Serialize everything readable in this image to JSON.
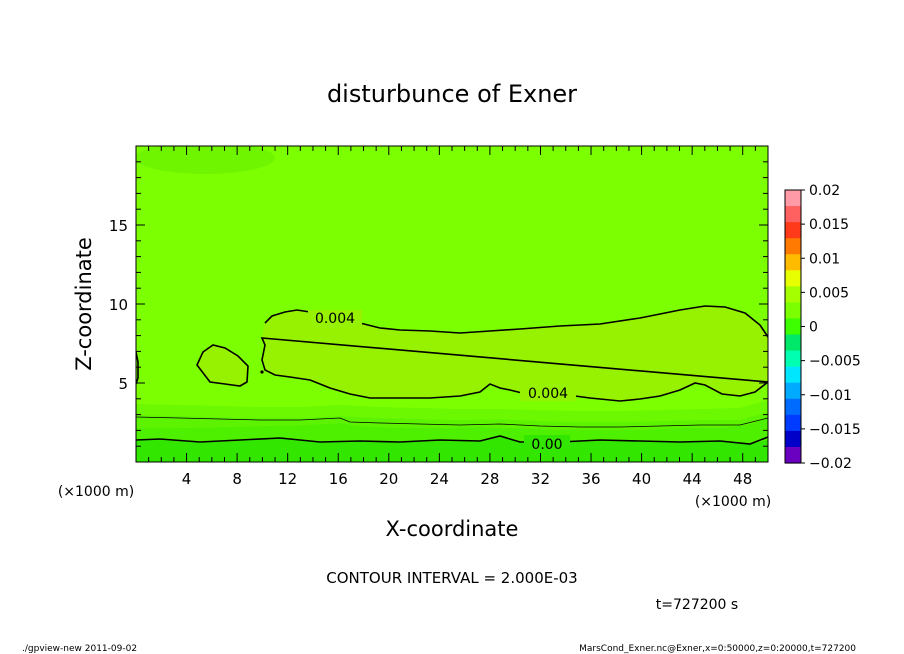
{
  "chart_data": {
    "type": "contour",
    "title": "disturbunce of Exner",
    "xlabel": "X-coordinate",
    "ylabel": "Z-coordinate",
    "x_unit": "(×1000 m)",
    "y_unit": "(×1000 m)",
    "xlim": [
      0,
      50
    ],
    "ylim": [
      0,
      20
    ],
    "x_ticks": [
      4,
      8,
      12,
      16,
      20,
      24,
      28,
      32,
      36,
      40,
      44,
      48
    ],
    "y_ticks": [
      5,
      10,
      15
    ],
    "contour_interval_text": "CONTOUR INTERVAL = 2.000E-03",
    "time_text": "t=727200 s",
    "colorbar": {
      "ticks": [
        "0.02",
        "0.015",
        "0.01",
        "0.005",
        "0",
        "−0.005",
        "−0.01",
        "−0.015",
        "−0.02"
      ],
      "colors": [
        "#ff9aa6",
        "#ff6060",
        "#ff3a1a",
        "#ff7a00",
        "#ffbb00",
        "#e7ff00",
        "#a6ff00",
        "#7cff00",
        "#3dff00",
        "#00e86a",
        "#00ffb0",
        "#00e6ff",
        "#00aaff",
        "#006cff",
        "#003cff",
        "#0000c8",
        "#6a00c0"
      ]
    },
    "contour_labels": [
      {
        "text": "0.004",
        "x": 14.8,
        "z": 9.1
      },
      {
        "text": "0.004",
        "x": 29.5,
        "z": 4.3
      },
      {
        "text": "0.00",
        "x": 29.5,
        "z": 1.1
      }
    ],
    "field_regions": [
      {
        "range": "0.002 to 0.004",
        "color": "#7cff00"
      },
      {
        "range": "0.004 to 0.006",
        "color": "#96f200"
      },
      {
        "range": "0 to 0.002",
        "color": "#4ef000"
      },
      {
        "range": "-0.002 to 0",
        "color": "#32e600"
      }
    ]
  },
  "footer": {
    "left": "./gpview-new   2011-09-02",
    "right": "MarsCond_Exner.nc@Exner,x=0:50000,z=0:20000,t=727200"
  }
}
